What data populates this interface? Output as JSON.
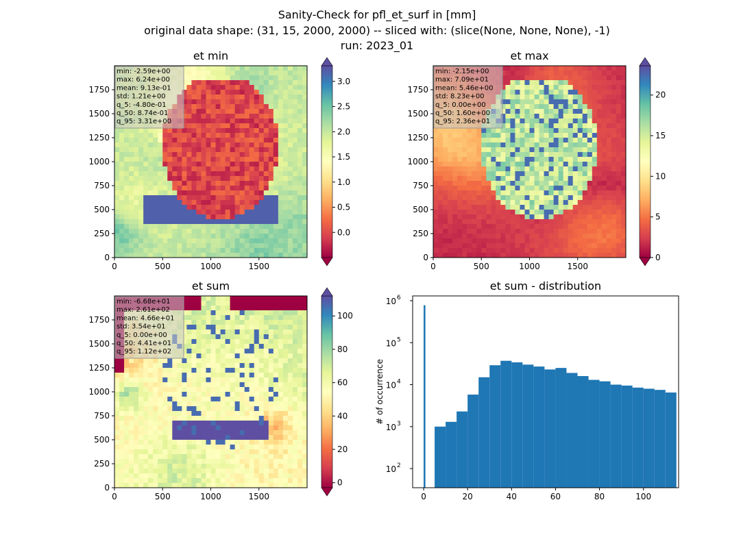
{
  "figure": {
    "title_line1": "Sanity-Check for pfl_et_surf in [mm]",
    "title_line2": "original data shape: (31, 15, 2000, 2000) -- sliced with: (slice(None, None, None), -1)",
    "title_line3": "run: 2023_01"
  },
  "colors": {
    "spectral": [
      "#9e0142",
      "#d53e4f",
      "#f46d43",
      "#fdae61",
      "#fee08b",
      "#ffffbf",
      "#e6f598",
      "#abdda4",
      "#66c2a5",
      "#3288bd",
      "#5e4fa2"
    ],
    "hist_bar": "#1f77b4",
    "stats_box": "#c8c8c8"
  },
  "chart_data": [
    {
      "type": "heatmap",
      "title": "et min",
      "x_ticks": [
        "0",
        "500",
        "1000",
        "1500"
      ],
      "y_ticks": [
        "0",
        "250",
        "500",
        "750",
        "1000",
        "1250",
        "1500",
        "1750"
      ],
      "xlim": [
        0,
        2000
      ],
      "ylim": [
        0,
        2000
      ],
      "colorbar": {
        "ticks": [
          "0.0",
          "0.5",
          "1.0",
          "1.5",
          "2.0",
          "2.5",
          "3.0"
        ],
        "tick_values": [
          0,
          0.5,
          1,
          1.5,
          2,
          2.5,
          3
        ],
        "range": [
          -0.5,
          3.31
        ],
        "extend": "both"
      },
      "stats": [
        "min: -2.59e+00",
        "max: 6.24e+00",
        "mean: 9.13e-01",
        "std: 1.21e+00",
        "q_5: -4.80e-01",
        "q_50: 8.74e-01",
        "q_95: 3.31e+00"
      ]
    },
    {
      "type": "heatmap",
      "title": "et max",
      "x_ticks": [
        "0",
        "500",
        "1000",
        "1500"
      ],
      "y_ticks": [
        "0",
        "250",
        "500",
        "750",
        "1000",
        "1250",
        "1500",
        "1750"
      ],
      "xlim": [
        0,
        2000
      ],
      "ylim": [
        0,
        2000
      ],
      "colorbar": {
        "ticks": [
          "0",
          "5",
          "10",
          "15",
          "20"
        ],
        "tick_values": [
          0,
          5,
          10,
          15,
          20
        ],
        "range": [
          0,
          23.6
        ],
        "extend": "both"
      },
      "stats": [
        "min: -2.15e+00",
        "max: 7.09e+01",
        "mean: 5.46e+00",
        "std: 8.23e+00",
        "q_5: 0.00e+00",
        "q_50: 1.60e+00",
        "q_95: 2.36e+01"
      ]
    },
    {
      "type": "heatmap",
      "title": "et sum",
      "x_ticks": [
        "0",
        "500",
        "1000",
        "1500"
      ],
      "y_ticks": [
        "0",
        "250",
        "500",
        "750",
        "1000",
        "1250",
        "1500",
        "1750"
      ],
      "xlim": [
        0,
        2000
      ],
      "ylim": [
        0,
        2000
      ],
      "colorbar": {
        "ticks": [
          "0",
          "20",
          "40",
          "60",
          "80",
          "100"
        ],
        "tick_values": [
          0,
          20,
          40,
          60,
          80,
          100
        ],
        "range": [
          -3,
          112
        ],
        "extend": "both"
      },
      "stats": [
        "min: -6.68e+01",
        "max: 2.61e+02",
        "mean: 4.66e+01",
        "std: 3.54e+01",
        "q_5: 0.00e+00",
        "q_50: 4.41e+01",
        "q_95: 1.12e+02"
      ]
    },
    {
      "type": "bar",
      "title": "et sum - distribution",
      "ylabel": "# of occurrence",
      "xlabel": "",
      "x_ticks": [
        "0",
        "20",
        "40",
        "60",
        "80",
        "100"
      ],
      "x_tick_values": [
        0,
        20,
        40,
        60,
        80,
        100
      ],
      "y_ticks": [
        "10",
        "10",
        "10",
        "10",
        "10"
      ],
      "y_tick_exps": [
        "2",
        "3",
        "4",
        "5",
        "6"
      ],
      "y_tick_values": [
        100,
        1000,
        10000,
        100000,
        1000000
      ],
      "y_scale": "log",
      "xlim": [
        -5,
        116
      ],
      "ylim": [
        35,
        1300000
      ],
      "bins": {
        "x": [
          0,
          5,
          10,
          15,
          20,
          25,
          30,
          35,
          40,
          45,
          50,
          55,
          60,
          65,
          70,
          75,
          80,
          85,
          90,
          95,
          100,
          105,
          110
        ],
        "y": [
          780000,
          1000,
          1300,
          2300,
          5800,
          15000,
          29000,
          37000,
          34000,
          30000,
          27000,
          23000,
          25000,
          19000,
          16000,
          13000,
          12000,
          10000,
          9500,
          8500,
          8000,
          7500,
          6500
        ]
      }
    }
  ]
}
